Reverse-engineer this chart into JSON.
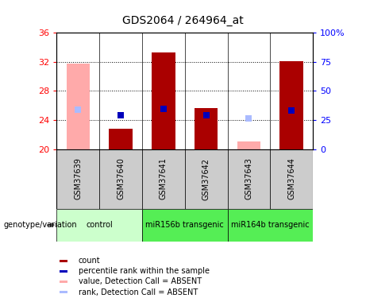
{
  "title": "GDS2064 / 264964_at",
  "samples": [
    "GSM37639",
    "GSM37640",
    "GSM37641",
    "GSM37642",
    "GSM37643",
    "GSM37644"
  ],
  "ylim_left": [
    20,
    36
  ],
  "ylim_right": [
    0,
    100
  ],
  "yticks_left": [
    20,
    24,
    28,
    32,
    36
  ],
  "yticks_right": [
    0,
    25,
    50,
    75,
    100
  ],
  "ytick_labels_right": [
    "0",
    "25",
    "50",
    "75",
    "100%"
  ],
  "bars": {
    "GSM37639": {
      "absent": true,
      "value": 31.8,
      "rank": 25.4
    },
    "GSM37640": {
      "absent": false,
      "value": 22.8,
      "rank": 24.6
    },
    "GSM37641": {
      "absent": false,
      "value": 33.3,
      "rank": 25.5
    },
    "GSM37642": {
      "absent": false,
      "value": 25.6,
      "rank": 24.7
    },
    "GSM37643": {
      "absent": true,
      "value": 21.0,
      "rank": 24.2
    },
    "GSM37644": {
      "absent": false,
      "value": 32.1,
      "rank": 25.3
    }
  },
  "bar_base": 20,
  "bar_width": 0.55,
  "dot_size": 30,
  "absent_bar_color": "#ffaaaa",
  "present_bar_color": "#aa0000",
  "absent_rank_color": "#aabbff",
  "present_rank_color": "#0000bb",
  "groups": [
    {
      "label": "control",
      "start": 0,
      "end": 2,
      "color": "#ccffcc"
    },
    {
      "label": "miR156b transgenic",
      "start": 2,
      "end": 4,
      "color": "#55ee55"
    },
    {
      "label": "miR164b transgenic",
      "start": 4,
      "end": 6,
      "color": "#55ee55"
    }
  ],
  "sample_bg_color": "#cccccc",
  "legend_items": [
    {
      "label": "count",
      "color": "#aa0000"
    },
    {
      "label": "percentile rank within the sample",
      "color": "#0000bb"
    },
    {
      "label": "value, Detection Call = ABSENT",
      "color": "#ffaaaa"
    },
    {
      "label": "rank, Detection Call = ABSENT",
      "color": "#aabbff"
    }
  ]
}
